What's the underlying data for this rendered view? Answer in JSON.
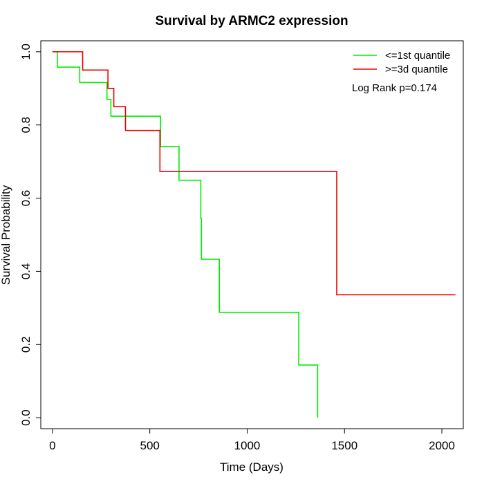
{
  "chart_data": {
    "type": "line",
    "step": true,
    "title": "Survival by ARMC2 expression",
    "xlabel": "Time (Days)",
    "ylabel": "Survival Probability",
    "xlim": [
      -60,
      2110
    ],
    "ylim": [
      -0.03,
      1.03
    ],
    "xticks": [
      0,
      500,
      1000,
      1500,
      2000
    ],
    "yticks": [
      0.0,
      0.2,
      0.4,
      0.6,
      0.8,
      1.0
    ],
    "xtick_labels": [
      "0",
      "500",
      "1000",
      "1500",
      "2000"
    ],
    "ytick_labels": [
      "0.0",
      "0.2",
      "0.4",
      "0.6",
      "0.8",
      "1.0"
    ],
    "grid": false,
    "legend_position": "top-right",
    "annotation": "Log Rank p=0.174",
    "series": [
      {
        "name": "<=1st quantile",
        "color": "#00ee00",
        "points": [
          [
            0,
            1.0
          ],
          [
            25,
            0.958
          ],
          [
            140,
            0.916
          ],
          [
            280,
            0.87
          ],
          [
            300,
            0.824
          ],
          [
            555,
            0.741
          ],
          [
            650,
            0.649
          ],
          [
            762,
            0.544
          ],
          [
            765,
            0.433
          ],
          [
            857,
            0.288
          ],
          [
            1265,
            0.144
          ],
          [
            1362,
            0.0
          ]
        ]
      },
      {
        "name": ">=3d quantile",
        "color": "#ee0000",
        "points": [
          [
            0,
            1.0
          ],
          [
            155,
            0.95
          ],
          [
            285,
            0.9
          ],
          [
            315,
            0.85
          ],
          [
            375,
            0.785
          ],
          [
            552,
            0.673
          ],
          [
            1460,
            0.336
          ],
          [
            2070,
            0.336
          ]
        ]
      }
    ]
  }
}
